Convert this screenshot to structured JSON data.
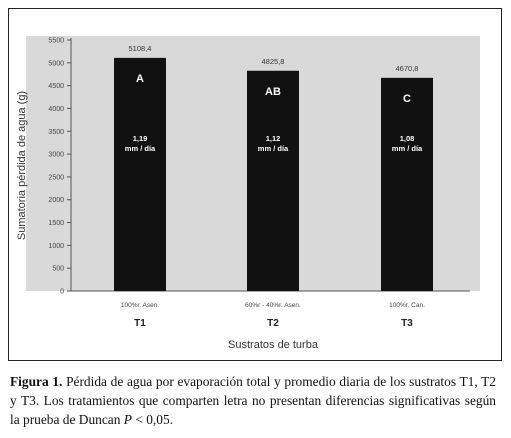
{
  "chart_data": {
    "type": "bar",
    "categories": [
      "T1",
      "T2",
      "T3"
    ],
    "category_sublabels": [
      "100%r. Asen.",
      "60%r - 40%r. Asen.",
      "100%r. Can."
    ],
    "values": [
      5108.4,
      4825.8,
      4670.8
    ],
    "value_labels": [
      "5108,4",
      "4825,8",
      "4670,8"
    ],
    "letters": [
      "A",
      "AB",
      "C"
    ],
    "daily_rates": [
      "1,19",
      "1,12",
      "1,08"
    ],
    "daily_unit": "mm / día",
    "ylabel": "Sumatoria pérdida de agua (g)",
    "xlabel": "Sustratos de turba",
    "ylim": [
      0,
      5500
    ],
    "yticks": [
      0,
      500,
      1000,
      1500,
      2000,
      2500,
      3000,
      3500,
      4000,
      4500,
      5000,
      5500
    ],
    "grid": false,
    "colors": {
      "bar": "#111111",
      "plot_bg": "#d9d9d9",
      "text": "#222222"
    }
  },
  "caption": {
    "label": "Figura 1.",
    "text_before": " Pérdida de agua por evaporación total y promedio diaria de los sustratos T1, T2 y T3. Los tratamientos que comparten letra no presentan diferencias significativas según la prueba de Duncan ",
    "p_symbol": "P",
    "text_after": " < 0,05."
  }
}
